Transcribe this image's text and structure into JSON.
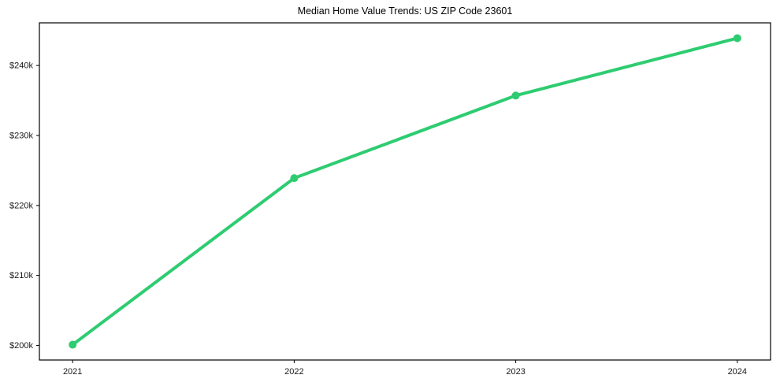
{
  "chart_data": {
    "type": "line",
    "title": "Median Home Value Trends: US ZIP Code 23601",
    "x": [
      2021,
      2022,
      2023,
      2024
    ],
    "values": [
      200100,
      223900,
      235700,
      243900
    ],
    "x_tick_labels": [
      "2021",
      "2022",
      "2023",
      "2024"
    ],
    "y_ticks": {
      "values": [
        200000,
        210000,
        220000,
        230000,
        240000
      ],
      "labels": [
        "$200k",
        "$210k",
        "$220k",
        "$230k",
        "$240k"
      ]
    },
    "xlabel": "",
    "ylabel": "",
    "xlim": [
      2020.85,
      2024.15
    ],
    "ylim": [
      197910,
      246090
    ],
    "grid": false,
    "legend": "none",
    "style": {
      "line_color": "#2ecc71",
      "axis_color": "#000000",
      "tick_label_color": "#1a1a1a",
      "title_color": "#000000",
      "background": "#ffffff"
    }
  }
}
